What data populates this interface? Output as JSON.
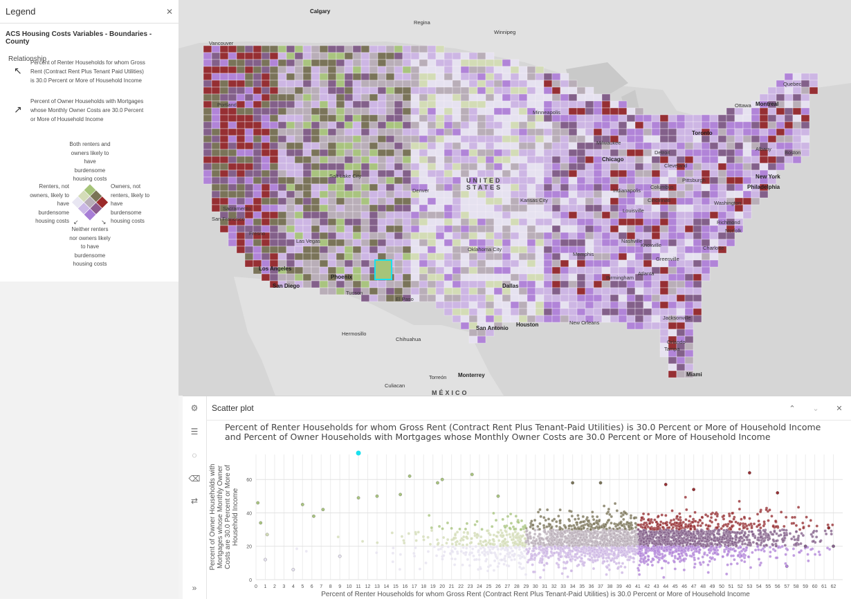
{
  "legend": {
    "title": "Legend",
    "layer_title": "ACS Housing Costs Variables - Boundaries - County",
    "relationship_label": "Relationship",
    "field1": "Percent of Renter Households for whom Gross Rent (Contract Rent Plus Tenant Paid Utilities) is 30.0 Percent or More of Household Income",
    "field2": "Percent of Owner Households with Mortgages whose Monthly Owner Costs are 30.0 Percent or More of Household Income",
    "corner_top": "Both renters and owners likely to have burdensome housing costs",
    "corner_left": "Renters, not owners, likely to have burdensome housing costs",
    "corner_right": "Owners, not renters, likely to have burdensome housing costs",
    "corner_bottom": "Neither renters nor owners likely to have burdensome housing costs",
    "grid_colors": [
      "#e8e6f2",
      "#cbb8e6",
      "#a77dd6",
      "#d4dcb8",
      "#b9aeb8",
      "#8c5c8e",
      "#a6c47a",
      "#7a7456",
      "#9b2a2a"
    ]
  },
  "map": {
    "labels": [
      {
        "text": "Calgary",
        "bold": true
      },
      {
        "text": "Regina",
        "bold": false
      },
      {
        "text": "Winnipeg",
        "bold": false
      },
      {
        "text": "Vancouver",
        "bold": false
      },
      {
        "text": "Portland",
        "bold": false
      },
      {
        "text": "Minneapolis",
        "bold": false
      },
      {
        "text": "Ottawa",
        "bold": false
      },
      {
        "text": "Montreal",
        "bold": true
      },
      {
        "text": "Quebec",
        "bold": false
      },
      {
        "text": "Toronto",
        "bold": true
      },
      {
        "text": "Milwaukee",
        "bold": false
      },
      {
        "text": "Detroit",
        "bold": false
      },
      {
        "text": "Chicago",
        "bold": true
      },
      {
        "text": "Cleveland",
        "bold": false
      },
      {
        "text": "Albany",
        "bold": false
      },
      {
        "text": "Boston",
        "bold": false
      },
      {
        "text": "New York",
        "bold": true
      },
      {
        "text": "Pittsburgh",
        "bold": false
      },
      {
        "text": "Philadelphia",
        "bold": true
      },
      {
        "text": "Salt Lake City",
        "bold": false
      },
      {
        "text": "Denver",
        "bold": false
      },
      {
        "text": "Kansas City",
        "bold": false
      },
      {
        "text": "Indianapolis",
        "bold": false
      },
      {
        "text": "Columbus",
        "bold": false
      },
      {
        "text": "Cincinnati",
        "bold": false
      },
      {
        "text": "Louisville",
        "bold": false
      },
      {
        "text": "Washington",
        "bold": false
      },
      {
        "text": "Richmond",
        "bold": false
      },
      {
        "text": "Norfolk",
        "bold": false
      },
      {
        "text": "Sacramento",
        "bold": false
      },
      {
        "text": "San Francisco",
        "bold": false
      },
      {
        "text": "Fresno",
        "bold": false
      },
      {
        "text": "Las Vegas",
        "bold": false
      },
      {
        "text": "Los Angeles",
        "bold": true
      },
      {
        "text": "San Diego",
        "bold": true
      },
      {
        "text": "Phoenix",
        "bold": true
      },
      {
        "text": "Tucson",
        "bold": false
      },
      {
        "text": "El Paso",
        "bold": false
      },
      {
        "text": "Oklahoma City",
        "bold": false
      },
      {
        "text": "Memphis",
        "bold": false
      },
      {
        "text": "Nashville",
        "bold": false
      },
      {
        "text": "Knoxville",
        "bold": false
      },
      {
        "text": "Charlotte",
        "bold": false
      },
      {
        "text": "Greenville",
        "bold": false
      },
      {
        "text": "Atlanta",
        "bold": false
      },
      {
        "text": "Birmingham",
        "bold": false
      },
      {
        "text": "Dallas",
        "bold": true
      },
      {
        "text": "San Antonio",
        "bold": true
      },
      {
        "text": "Houston",
        "bold": true
      },
      {
        "text": "New Orleans",
        "bold": false
      },
      {
        "text": "Jacksonville",
        "bold": false
      },
      {
        "text": "Orlando",
        "bold": false
      },
      {
        "text": "Tampa",
        "bold": false
      },
      {
        "text": "Miami",
        "bold": true
      },
      {
        "text": "Hermosillo",
        "bold": false
      },
      {
        "text": "Chihuahua",
        "bold": false
      },
      {
        "text": "Culiacan",
        "bold": false
      },
      {
        "text": "Torreón",
        "bold": false
      },
      {
        "text": "Monterrey",
        "bold": true
      }
    ],
    "country": "UNITED STATES",
    "country_mx": "MÉXICO"
  },
  "scatter": {
    "panel_title": "Scatter plot",
    "toolbar_icons": [
      "gear-icon",
      "list-icon",
      "target-icon",
      "eraser-icon",
      "swap-icon",
      "expand-icon"
    ],
    "header_icons": [
      "collapse-up-icon",
      "collapse-down-icon",
      "close-icon"
    ]
  },
  "chart_data": {
    "type": "scatter",
    "title": "Percent of Renter Households for whom Gross Rent (Contract Rent Plus Tenant-Paid Utilities) is 30.0 Percent or More of Household Income and Percent of Owner Households with Mortgages whose Monthly Owner Costs are 30.0 Percent or More of Household Income",
    "xlabel": "Percent of Renter Households for whom Gross Rent (Contract Rent Plus Tenant-Paid Utilities) is 30.0 Percent or More of Household Income",
    "ylabel": "Percent of Owner Households with Mortgages whose Monthly Owner Costs are 30.0 Percent or More of Household Income",
    "xlim": [
      0,
      63
    ],
    "ylim": [
      0,
      75
    ],
    "x_ticks": [
      0,
      1,
      2,
      3,
      4,
      5,
      6,
      7,
      8,
      9,
      10,
      11,
      12,
      13,
      14,
      15,
      16,
      17,
      18,
      19,
      20,
      21,
      22,
      23,
      24,
      25,
      26,
      27,
      28,
      29,
      30,
      31,
      32,
      33,
      34,
      35,
      36,
      37,
      38,
      39,
      40,
      41,
      42,
      43,
      44,
      45,
      46,
      47,
      48,
      49,
      50,
      51,
      52,
      53,
      54,
      55,
      56,
      57,
      58,
      59,
      60,
      61,
      62
    ],
    "y_ticks": [
      0,
      20,
      40,
      60
    ],
    "x_break_1": 29,
    "x_break_2": 41,
    "y_break_1": 20,
    "y_break_2": 30,
    "class_colors": [
      "#e6e2f0",
      "#cdb6e4",
      "#b184d8",
      "#d3dcb6",
      "#b9aeb8",
      "#83608a",
      "#a9c47f",
      "#7a7459",
      "#962f33"
    ],
    "selected_point": {
      "x": 11,
      "y": 76,
      "color": "#19e0ee"
    },
    "sample_points": [
      {
        "x": 0.2,
        "y": 46
      },
      {
        "x": 0.5,
        "y": 34
      },
      {
        "x": 1.2,
        "y": 27
      },
      {
        "x": 5,
        "y": 45
      },
      {
        "x": 6.2,
        "y": 38
      },
      {
        "x": 7.2,
        "y": 42
      },
      {
        "x": 11,
        "y": 49
      },
      {
        "x": 13,
        "y": 50
      },
      {
        "x": 15.5,
        "y": 51
      },
      {
        "x": 16.5,
        "y": 62
      },
      {
        "x": 19.5,
        "y": 58
      },
      {
        "x": 20,
        "y": 60
      },
      {
        "x": 23.2,
        "y": 63
      },
      {
        "x": 26,
        "y": 50
      },
      {
        "x": 34,
        "y": 58
      },
      {
        "x": 37,
        "y": 58
      },
      {
        "x": 44,
        "y": 57
      },
      {
        "x": 47,
        "y": 54
      },
      {
        "x": 53,
        "y": 64
      },
      {
        "x": 56,
        "y": 52
      },
      {
        "x": 61.5,
        "y": 31
      },
      {
        "x": 59,
        "y": 20
      },
      {
        "x": 62,
        "y": 20
      },
      {
        "x": 57,
        "y": 8
      },
      {
        "x": 9,
        "y": 14
      },
      {
        "x": 4,
        "y": 6
      },
      {
        "x": 1,
        "y": 12
      }
    ]
  }
}
